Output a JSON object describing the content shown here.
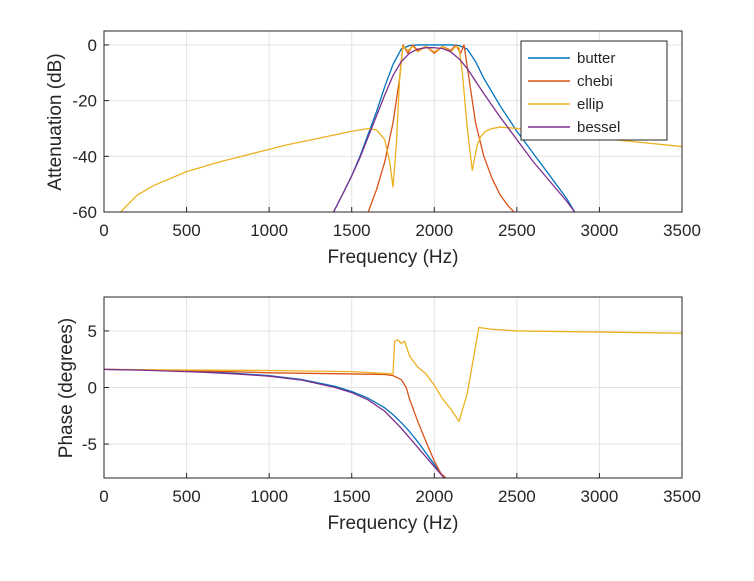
{
  "chart_data": [
    {
      "type": "line",
      "id": "magnitude",
      "xlabel": "Frequency (Hz)",
      "ylabel": "Attenuation (dB)",
      "xlim": [
        0,
        3500
      ],
      "ylim": [
        -60,
        5
      ],
      "xticks": [
        0,
        500,
        1000,
        1500,
        2000,
        2500,
        3000,
        3500
      ],
      "yticks": [
        -60,
        -40,
        -20,
        0
      ],
      "grid": true,
      "legend": {
        "position": "top-right",
        "entries": [
          "butter",
          "chebi",
          "ellip",
          "bessel"
        ]
      },
      "series": [
        {
          "name": "butter",
          "color": "#0072BD",
          "x": [
            1390,
            1450,
            1500,
            1550,
            1600,
            1650,
            1700,
            1750,
            1800,
            1850,
            1900,
            1950,
            2000,
            2050,
            2100,
            2150,
            2200,
            2250,
            2300,
            2400,
            2500,
            2600,
            2700,
            2800,
            2850
          ],
          "y": [
            -60,
            -53,
            -47,
            -40,
            -32,
            -24,
            -15,
            -7,
            -1.5,
            -0.2,
            0,
            0,
            0,
            0,
            0,
            -0.2,
            -1.5,
            -6,
            -12,
            -22,
            -31,
            -39,
            -47,
            -55,
            -60
          ]
        },
        {
          "name": "chebi",
          "color": "#D95319",
          "x": [
            1600,
            1650,
            1700,
            1750,
            1790,
            1810,
            1840,
            1870,
            1900,
            1950,
            2000,
            2050,
            2100,
            2130,
            2160,
            2180,
            2210,
            2250,
            2300,
            2350,
            2400,
            2450,
            2500
          ],
          "y": [
            -60,
            -52,
            -42,
            -28,
            -12,
            0,
            -3,
            0,
            -2,
            -0.5,
            -3,
            -0.5,
            -2,
            0,
            -3,
            0,
            -12,
            -28,
            -40,
            -48,
            -54,
            -58,
            -61
          ]
        },
        {
          "name": "ellip",
          "color": "#EDB120",
          "x": [
            100,
            200,
            300,
            500,
            700,
            900,
            1100,
            1300,
            1500,
            1600,
            1650,
            1700,
            1730,
            1750,
            1770,
            1790,
            1810,
            1840,
            1870,
            1900,
            1950,
            2000,
            2050,
            2100,
            2130,
            2150,
            2170,
            2200,
            2230,
            2260,
            2280,
            2310,
            2350,
            2400,
            2500,
            2700,
            3000,
            3250,
            3500
          ],
          "y": [
            -60,
            -54,
            -50.5,
            -45.5,
            -42,
            -39,
            -36,
            -33.5,
            -31,
            -30,
            -30.5,
            -34,
            -42,
            -51,
            -36,
            -12,
            -0.5,
            -2,
            -0.5,
            -2.5,
            -0.5,
            -2.5,
            -0.5,
            -2.5,
            -0.5,
            -1,
            -10,
            -30,
            -45,
            -36,
            -33,
            -31,
            -30,
            -29.5,
            -30,
            -31.5,
            -33.5,
            -35,
            -36.5
          ]
        },
        {
          "name": "bessel",
          "color": "#7E2F8E",
          "x": [
            1390,
            1450,
            1500,
            1550,
            1600,
            1650,
            1700,
            1750,
            1800,
            1850,
            1900,
            1950,
            2000,
            2050,
            2100,
            2150,
            2200,
            2250,
            2300,
            2400,
            2500,
            2600,
            2700,
            2800,
            2850
          ],
          "y": [
            -60,
            -53,
            -47,
            -40.5,
            -33,
            -25.5,
            -18,
            -11,
            -6,
            -3,
            -1.5,
            -1,
            -1,
            -1.3,
            -2.5,
            -5,
            -8.5,
            -13,
            -17.5,
            -26,
            -34,
            -42,
            -49,
            -56,
            -60
          ]
        }
      ]
    },
    {
      "type": "line",
      "id": "phase",
      "xlabel": "Frequency (Hz)",
      "ylabel": "Phase (degrees)",
      "xlim": [
        0,
        3500
      ],
      "ylim": [
        -8,
        8
      ],
      "xticks": [
        0,
        500,
        1000,
        1500,
        2000,
        2500,
        3000,
        3500
      ],
      "yticks": [
        -5,
        0,
        5
      ],
      "grid": true,
      "series": [
        {
          "name": "butter",
          "color": "#0072BD",
          "x": [
            0,
            200,
            400,
            600,
            800,
            1000,
            1200,
            1400,
            1500,
            1600,
            1700,
            1750,
            1800,
            1850,
            1900,
            1950,
            2000,
            2050,
            2070
          ],
          "y": [
            1.6,
            1.55,
            1.5,
            1.4,
            1.25,
            1.05,
            0.7,
            0.1,
            -0.35,
            -0.95,
            -1.8,
            -2.4,
            -3.1,
            -3.9,
            -4.8,
            -5.8,
            -6.8,
            -7.8,
            -8.0
          ]
        },
        {
          "name": "chebi",
          "color": "#D95319",
          "x": [
            0,
            500,
            1000,
            1500,
            1700,
            1750,
            1800,
            1830,
            1850,
            1900,
            1950,
            2000,
            2040,
            2070
          ],
          "y": [
            1.6,
            1.5,
            1.3,
            1.2,
            1.15,
            1.05,
            0.7,
            0.0,
            -1.0,
            -3.0,
            -4.8,
            -6.5,
            -7.6,
            -8.0
          ]
        },
        {
          "name": "ellip",
          "color": "#EDB120",
          "x": [
            0,
            500,
            1000,
            1500,
            1700,
            1750,
            1760,
            1780,
            1800,
            1820,
            1850,
            1900,
            1950,
            2000,
            2050,
            2100,
            2150,
            2170,
            2200,
            2270,
            2350,
            2500,
            3000,
            3500
          ],
          "y": [
            1.6,
            1.55,
            1.5,
            1.4,
            1.25,
            1.2,
            4.1,
            4.2,
            3.9,
            4.1,
            2.8,
            1.8,
            1.2,
            0.2,
            -1.0,
            -1.9,
            -3.0,
            -2.0,
            -0.5,
            5.3,
            5.15,
            5.0,
            4.9,
            4.8
          ]
        },
        {
          "name": "bessel",
          "color": "#7E2F8E",
          "x": [
            0,
            200,
            400,
            600,
            800,
            1000,
            1200,
            1400,
            1500,
            1600,
            1700,
            1800,
            1900,
            2000,
            2060
          ],
          "y": [
            1.6,
            1.55,
            1.45,
            1.35,
            1.2,
            1.0,
            0.65,
            0.0,
            -0.45,
            -1.1,
            -2.1,
            -3.6,
            -5.3,
            -7.0,
            -8.0
          ]
        }
      ]
    }
  ]
}
